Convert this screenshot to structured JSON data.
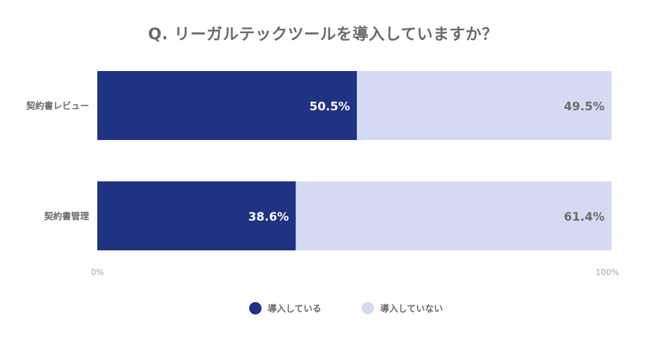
{
  "chart_data": {
    "type": "bar",
    "orientation": "horizontal",
    "stacked": true,
    "title": "Q. リーガルテックツールを導入していますか？",
    "categories": [
      "契約書レビュー",
      "契約書管理"
    ],
    "series": [
      {
        "name": "導入している",
        "values": [
          50.5,
          38.6
        ],
        "color": "#203282",
        "label_color": "#ffffff"
      },
      {
        "name": "導入していない",
        "values": [
          49.5,
          61.4
        ],
        "color": "#d5daf4",
        "label_color": "#6b6b6b"
      }
    ],
    "value_suffix": "%",
    "x_tick_labels": [
      "0%",
      "100%"
    ],
    "xlim": [
      0,
      100
    ],
    "grid": false,
    "legend_position": "bottom-center"
  }
}
